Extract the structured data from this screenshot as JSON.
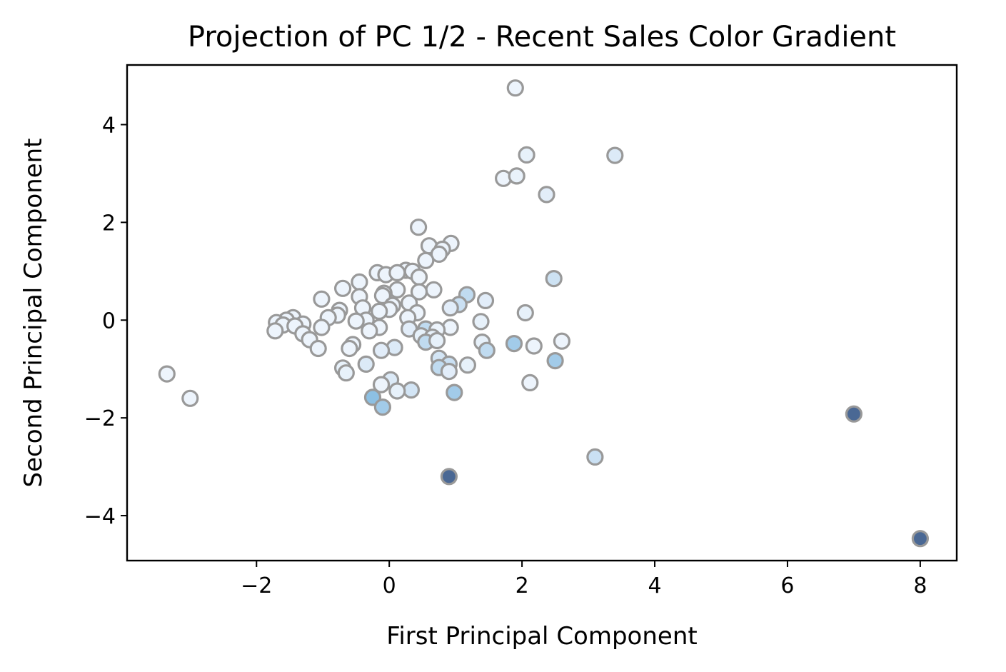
{
  "chart_data": {
    "type": "scatter",
    "title": "Projection of PC 1/2 - Recent Sales Color Gradient",
    "xlabel": "First Principal Component",
    "ylabel": "Second Principal Component",
    "xlim": [
      -3.95,
      8.55
    ],
    "ylim": [
      -4.92,
      5.22
    ],
    "xticks": [
      -2,
      0,
      2,
      4,
      6,
      8
    ],
    "xtick_labels": [
      "−2",
      "0",
      "2",
      "4",
      "6",
      "8"
    ],
    "yticks": [
      -4,
      -2,
      0,
      2,
      4
    ],
    "ytick_labels": [
      "−4",
      "−2",
      "0",
      "2",
      "4"
    ],
    "grid": false,
    "legend": "none",
    "marker_edge_color": "#999999",
    "color_scale": "Blues (light to dark by recent sales)",
    "color_stops": [
      "#f2f7fd",
      "#dceaf7",
      "#b7d6ee",
      "#8dc0e3",
      "#6aa4d5",
      "#4a6894"
    ],
    "points": [
      {
        "x": 1.9,
        "y": 4.75,
        "c": 0.05
      },
      {
        "x": 2.07,
        "y": 3.38,
        "c": 0.1
      },
      {
        "x": 3.4,
        "y": 3.37,
        "c": 0.2
      },
      {
        "x": 1.72,
        "y": 2.9,
        "c": 0.05
      },
      {
        "x": 1.92,
        "y": 2.95,
        "c": 0.08
      },
      {
        "x": 2.37,
        "y": 2.57,
        "c": 0.15
      },
      {
        "x": 0.44,
        "y": 1.9,
        "c": 0.05
      },
      {
        "x": 0.93,
        "y": 1.57,
        "c": 0.05
      },
      {
        "x": 0.6,
        "y": 1.52,
        "c": 0.05
      },
      {
        "x": 0.8,
        "y": 1.45,
        "c": 0.05
      },
      {
        "x": 0.75,
        "y": 1.35,
        "c": 0.05
      },
      {
        "x": 0.55,
        "y": 1.22,
        "c": 0.05
      },
      {
        "x": 0.25,
        "y": 1.02,
        "c": 0.05
      },
      {
        "x": 0.35,
        "y": 1.0,
        "c": 0.05
      },
      {
        "x": -0.18,
        "y": 0.97,
        "c": 0.05
      },
      {
        "x": -0.05,
        "y": 0.93,
        "c": 0.05
      },
      {
        "x": 0.12,
        "y": 0.97,
        "c": 0.05
      },
      {
        "x": 0.45,
        "y": 0.88,
        "c": 0.05
      },
      {
        "x": 2.48,
        "y": 0.85,
        "c": 0.28
      },
      {
        "x": -0.45,
        "y": 0.78,
        "c": 0.05
      },
      {
        "x": -0.7,
        "y": 0.65,
        "c": 0.05
      },
      {
        "x": 0.67,
        "y": 0.62,
        "c": 0.05
      },
      {
        "x": 0.12,
        "y": 0.62,
        "c": 0.05
      },
      {
        "x": 0.45,
        "y": 0.58,
        "c": 0.05
      },
      {
        "x": -0.08,
        "y": 0.55,
        "c": 0.05
      },
      {
        "x": 1.17,
        "y": 0.52,
        "c": 0.35
      },
      {
        "x": -0.45,
        "y": 0.48,
        "c": 0.05
      },
      {
        "x": -0.1,
        "y": 0.5,
        "c": 0.05
      },
      {
        "x": -1.02,
        "y": 0.43,
        "c": 0.05
      },
      {
        "x": 1.45,
        "y": 0.4,
        "c": 0.15
      },
      {
        "x": 0.3,
        "y": 0.35,
        "c": 0.05
      },
      {
        "x": 0.05,
        "y": 0.3,
        "c": 0.05
      },
      {
        "x": 1.05,
        "y": 0.32,
        "c": 0.3
      },
      {
        "x": 0.92,
        "y": 0.25,
        "c": 0.15
      },
      {
        "x": -0.4,
        "y": 0.25,
        "c": 0.05
      },
      {
        "x": 0.0,
        "y": 0.22,
        "c": 0.05
      },
      {
        "x": -0.75,
        "y": 0.2,
        "c": 0.05
      },
      {
        "x": -0.15,
        "y": 0.18,
        "c": 0.05
      },
      {
        "x": 0.42,
        "y": 0.15,
        "c": 0.05
      },
      {
        "x": 2.05,
        "y": 0.15,
        "c": 0.1
      },
      {
        "x": -0.78,
        "y": 0.1,
        "c": 0.05
      },
      {
        "x": -0.92,
        "y": 0.05,
        "c": 0.05
      },
      {
        "x": 0.28,
        "y": 0.05,
        "c": 0.05
      },
      {
        "x": -0.35,
        "y": 0.0,
        "c": 0.05
      },
      {
        "x": -0.5,
        "y": -0.02,
        "c": 0.05
      },
      {
        "x": 1.38,
        "y": -0.03,
        "c": 0.1
      },
      {
        "x": -1.45,
        "y": 0.05,
        "c": 0.05
      },
      {
        "x": -1.55,
        "y": 0.0,
        "c": 0.05
      },
      {
        "x": -1.7,
        "y": -0.05,
        "c": 0.05
      },
      {
        "x": -1.3,
        "y": -0.08,
        "c": 0.05
      },
      {
        "x": -1.6,
        "y": -0.1,
        "c": 0.05
      },
      {
        "x": -1.42,
        "y": -0.12,
        "c": 0.05
      },
      {
        "x": -1.02,
        "y": -0.15,
        "c": 0.05
      },
      {
        "x": -0.15,
        "y": -0.15,
        "c": 0.05
      },
      {
        "x": 0.92,
        "y": -0.15,
        "c": 0.05
      },
      {
        "x": 0.3,
        "y": -0.18,
        "c": 0.15
      },
      {
        "x": 0.55,
        "y": -0.18,
        "c": 0.35
      },
      {
        "x": -0.3,
        "y": -0.22,
        "c": 0.05
      },
      {
        "x": 0.72,
        "y": -0.2,
        "c": 0.05
      },
      {
        "x": -1.72,
        "y": -0.22,
        "c": 0.05
      },
      {
        "x": -1.3,
        "y": -0.28,
        "c": 0.05
      },
      {
        "x": 0.48,
        "y": -0.32,
        "c": 0.1
      },
      {
        "x": 0.65,
        "y": -0.35,
        "c": 0.1
      },
      {
        "x": -1.2,
        "y": -0.4,
        "c": 0.05
      },
      {
        "x": 1.4,
        "y": -0.45,
        "c": 0.1
      },
      {
        "x": 0.55,
        "y": -0.45,
        "c": 0.35
      },
      {
        "x": 0.72,
        "y": -0.42,
        "c": 0.1
      },
      {
        "x": 2.6,
        "y": -0.43,
        "c": 0.05
      },
      {
        "x": 1.88,
        "y": -0.48,
        "c": 0.5
      },
      {
        "x": -0.55,
        "y": -0.5,
        "c": 0.05
      },
      {
        "x": 2.18,
        "y": -0.53,
        "c": 0.05
      },
      {
        "x": -1.07,
        "y": -0.58,
        "c": 0.05
      },
      {
        "x": 0.08,
        "y": -0.56,
        "c": 0.2
      },
      {
        "x": -0.6,
        "y": -0.58,
        "c": 0.05
      },
      {
        "x": 1.47,
        "y": -0.62,
        "c": 0.35
      },
      {
        "x": -0.12,
        "y": -0.62,
        "c": 0.15
      },
      {
        "x": 0.75,
        "y": -0.78,
        "c": 0.25
      },
      {
        "x": 2.5,
        "y": -0.83,
        "c": 0.5
      },
      {
        "x": -0.35,
        "y": -0.9,
        "c": 0.2
      },
      {
        "x": 0.9,
        "y": -0.9,
        "c": 0.3
      },
      {
        "x": 1.18,
        "y": -0.92,
        "c": 0.1
      },
      {
        "x": 0.75,
        "y": -0.97,
        "c": 0.35
      },
      {
        "x": -0.7,
        "y": -0.98,
        "c": 0.1
      },
      {
        "x": 0.9,
        "y": -1.05,
        "c": 0.15
      },
      {
        "x": -0.65,
        "y": -1.08,
        "c": 0.1
      },
      {
        "x": -3.35,
        "y": -1.1,
        "c": 0.05
      },
      {
        "x": 0.02,
        "y": -1.22,
        "c": 0.2
      },
      {
        "x": 2.12,
        "y": -1.28,
        "c": 0.05
      },
      {
        "x": -0.12,
        "y": -1.32,
        "c": 0.05
      },
      {
        "x": 0.33,
        "y": -1.43,
        "c": 0.25
      },
      {
        "x": 0.12,
        "y": -1.45,
        "c": 0.1
      },
      {
        "x": 0.98,
        "y": -1.48,
        "c": 0.5
      },
      {
        "x": -0.25,
        "y": -1.58,
        "c": 0.6
      },
      {
        "x": -3.0,
        "y": -1.6,
        "c": 0.05
      },
      {
        "x": -0.1,
        "y": -1.78,
        "c": 0.5
      },
      {
        "x": 7.0,
        "y": -1.92,
        "c": 1.0
      },
      {
        "x": 3.1,
        "y": -2.8,
        "c": 0.3
      },
      {
        "x": 0.9,
        "y": -3.2,
        "c": 1.0
      },
      {
        "x": 8.0,
        "y": -4.47,
        "c": 1.0
      }
    ]
  }
}
